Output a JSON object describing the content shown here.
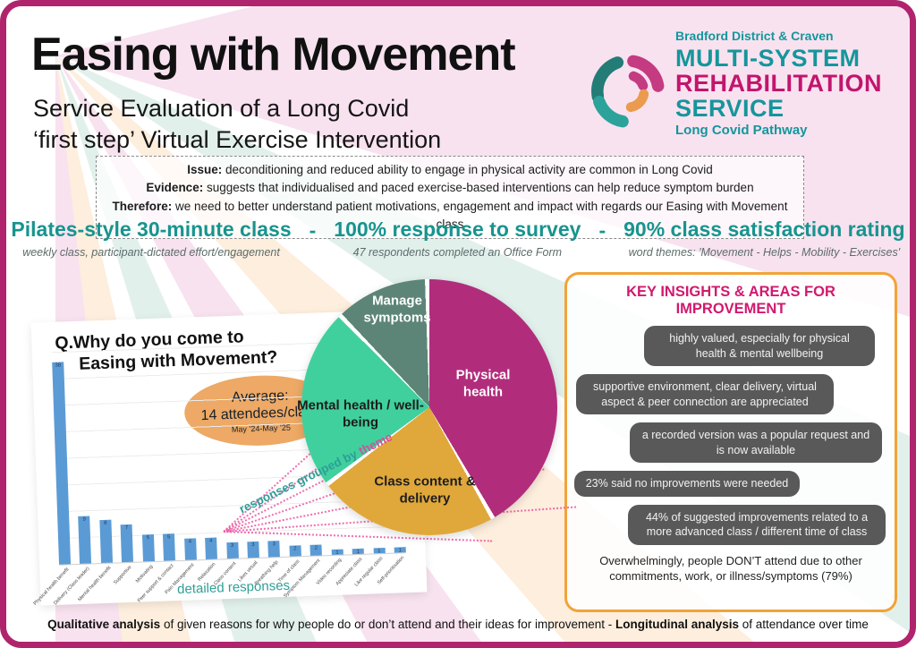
{
  "page": {
    "title": "Easing with Movement",
    "subtitle_line1": "Service Evaluation of a Long Covid",
    "subtitle_line2": "‘first step’ Virtual Exercise Intervention"
  },
  "logo": {
    "org": "Bradford District & Craven",
    "line1": "MULTI-SYSTEM",
    "line2": "REHABILITATION",
    "line3": "SERVICE",
    "line4": "Long Covid Pathway"
  },
  "context_box": {
    "lines": [
      {
        "label": "Issue:",
        "text": " deconditioning and reduced ability to engage in physical activity are common in Long Covid"
      },
      {
        "label": "Evidence:",
        "text": " suggests that individualised and paced exercise-based interventions can help reduce symptom burden"
      },
      {
        "label": "Therefore:",
        "text": " we need to better understand patient motivations, engagement and impact with regards our Easing with Movement class"
      }
    ]
  },
  "stats_separator": "-",
  "stats": [
    {
      "headline": "Pilates-style 30-minute class",
      "detail": "weekly class, participant-dictated effort/engagement"
    },
    {
      "headline": "100% response to survey",
      "detail": "47 respondents completed an Office Form"
    },
    {
      "headline": "90% class satisfaction rating",
      "detail": "word themes: 'Movement - Helps - Mobility - Exercises'"
    }
  ],
  "chart_data": [
    {
      "type": "bar",
      "title": "Q.Why do you come to Easing with Movement?",
      "xlabel": "detailed responses",
      "ylabel": "",
      "ylim": [
        0,
        40
      ],
      "grid": true,
      "bar_color": "#5b9bd5",
      "categories": [
        "Physical health benefit",
        "Delivery (Class leader)",
        "Mental health benefit",
        "Supportive",
        "Motivating",
        "Peer support & contact",
        "Pain Management",
        "Relaxation",
        "Class content",
        "Likes virtual",
        "Breathing help",
        "Time of class",
        "Symptom Management",
        "Video recording",
        "Appreciate class",
        "Like regular class",
        "Self-prioritisation"
      ],
      "values": [
        38,
        9,
        8,
        7,
        5,
        5,
        4,
        4,
        3,
        3,
        3,
        2,
        2,
        1,
        1,
        1,
        1
      ],
      "annotation": {
        "line1": "Average:",
        "line2": "14 attendees/class",
        "line3": "May ’24-May ’25"
      },
      "connector_label": {
        "main": "responses grouped by ",
        "accent": "theme"
      }
    },
    {
      "type": "pie",
      "slices": [
        {
          "label": "Physical health",
          "percent": 42,
          "color": "#b12d7c",
          "text_color": "#ffffff"
        },
        {
          "label": "Class content & delivery",
          "percent": 23,
          "color": "#e0a83a",
          "text_color": "#1d1d1d"
        },
        {
          "label": "Mental health / well-being",
          "percent": 23,
          "color": "#40d09e",
          "text_color": "#1d1d1d"
        },
        {
          "label": "Manage symptoms",
          "percent": 12,
          "color": "#5d8577",
          "text_color": "#ffffff"
        }
      ],
      "legend_position": "on-slices"
    }
  ],
  "insights": {
    "title": "KEY INSIGHTS & AREAS FOR IMPROVEMENT",
    "boxes": [
      "highly valued, especially for physical health & mental wellbeing",
      "supportive environment, clear delivery, virtual aspect & peer connection are appreciated",
      "a recorded version was a popular request and is now available",
      "23% said no improvements were needed",
      "44% of suggested improvements related to a more advanced class / different time of class"
    ],
    "footnote": "Overwhelmingly, people DON’T attend due to other commitments, work, or illness/symptoms (79%)"
  },
  "footer": {
    "bold1": "Qualitative analysis",
    "text1": " of given reasons for why people do or don’t attend and their ideas for improvement",
    "sep": "  -  ",
    "bold2": "Longitudinal analysis",
    "text2": " of attendance over time"
  },
  "colors": {
    "page_border": "#b0246e",
    "accent_teal": "#17948e",
    "accent_magenta": "#d1196e",
    "panel_border_orange": "#f2a338",
    "insight_box_gray": "#595959",
    "bar_blue": "#5b9bd5",
    "ellipse_orange": "#eda965",
    "connector_pink": "#ec5fa7",
    "logo_teal_dark": "#237c76",
    "logo_teal": "#2ba39a",
    "logo_pink": "#c43b82",
    "logo_orange": "#eb9b4e"
  }
}
